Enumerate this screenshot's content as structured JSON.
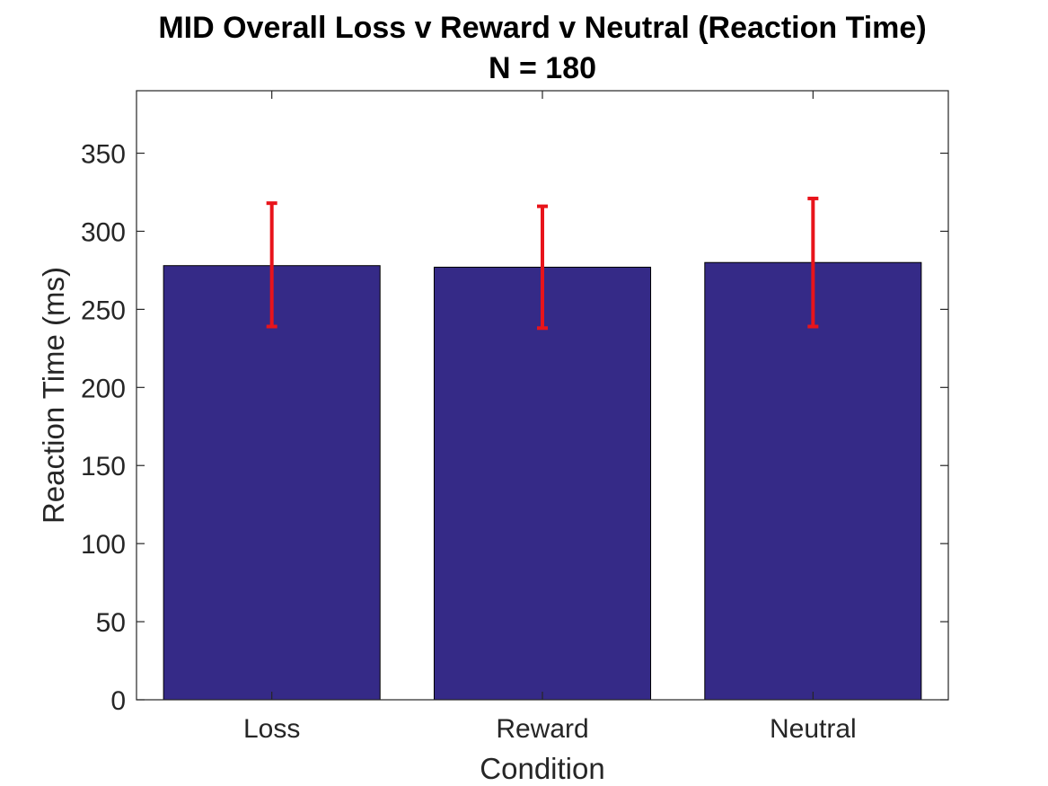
{
  "chart_data": {
    "type": "bar",
    "title": "MID Overall Loss v Reward v Neutral (Reaction Time)",
    "subtitle": "N = 180",
    "xlabel": "Condition",
    "ylabel": "Reaction Time (ms)",
    "categories": [
      "Loss",
      "Reward",
      "Neutral"
    ],
    "values": [
      278,
      277,
      280
    ],
    "error_low": [
      239,
      238,
      239
    ],
    "error_high": [
      318,
      316,
      321
    ],
    "ylim": [
      0,
      390
    ],
    "yticks": [
      "0",
      "50",
      "100",
      "150",
      "200",
      "250",
      "300",
      "350"
    ],
    "bar_color": "#352A87",
    "error_color": "#E8141B",
    "grid": false,
    "legend": false
  }
}
